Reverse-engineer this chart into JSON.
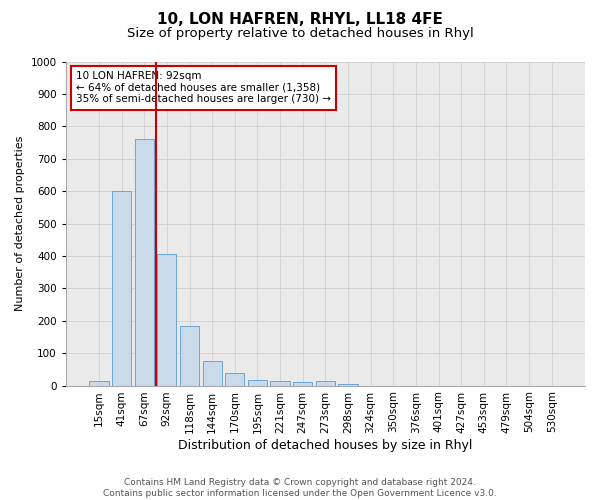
{
  "title": "10, LON HAFREN, RHYL, LL18 4FE",
  "subtitle": "Size of property relative to detached houses in Rhyl",
  "xlabel": "Distribution of detached houses by size in Rhyl",
  "ylabel": "Number of detached properties",
  "footer_line1": "Contains HM Land Registry data © Crown copyright and database right 2024.",
  "footer_line2": "Contains public sector information licensed under the Open Government Licence v3.0.",
  "categories": [
    "15sqm",
    "41sqm",
    "67sqm",
    "92sqm",
    "118sqm",
    "144sqm",
    "170sqm",
    "195sqm",
    "221sqm",
    "247sqm",
    "273sqm",
    "298sqm",
    "324sqm",
    "350sqm",
    "376sqm",
    "401sqm",
    "427sqm",
    "453sqm",
    "479sqm",
    "504sqm",
    "530sqm"
  ],
  "values": [
    13,
    600,
    760,
    405,
    185,
    75,
    38,
    17,
    13,
    10,
    13,
    5,
    0,
    0,
    0,
    0,
    0,
    0,
    0,
    0,
    0
  ],
  "bar_color": "#c9daea",
  "bar_edge_color": "#5b9bd5",
  "vline_color": "#cc0000",
  "vline_x_index": 3,
  "annotation_text": "10 LON HAFREN: 92sqm\n← 64% of detached houses are smaller (1,358)\n35% of semi-detached houses are larger (730) →",
  "annotation_box_color": "white",
  "annotation_box_edge": "#cc0000",
  "ylim": [
    0,
    1000
  ],
  "yticks": [
    0,
    100,
    200,
    300,
    400,
    500,
    600,
    700,
    800,
    900,
    1000
  ],
  "grid_color": "#d0d0d0",
  "plot_bg_color": "#eaeaea",
  "fig_bg_color": "#ffffff",
  "title_fontsize": 11,
  "subtitle_fontsize": 9.5,
  "xlabel_fontsize": 9,
  "ylabel_fontsize": 8,
  "tick_fontsize": 7.5,
  "annotation_fontsize": 7.5,
  "footer_fontsize": 6.5
}
